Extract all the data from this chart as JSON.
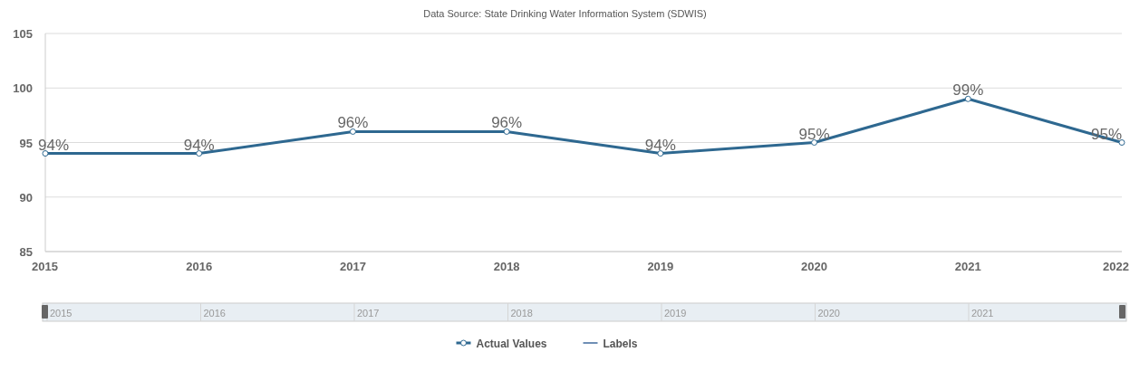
{
  "chart_data": {
    "type": "line",
    "title": "Data Source: State Drinking Water Information System (SDWIS)",
    "categories": [
      "2015",
      "2016",
      "2017",
      "2018",
      "2019",
      "2020",
      "2021",
      "2022"
    ],
    "series": [
      {
        "name": "Actual Values",
        "color": "#2e6890",
        "values": [
          94,
          94,
          96,
          96,
          94,
          95,
          99,
          95
        ],
        "value_labels": [
          "94%",
          "94%",
          "96%",
          "96%",
          "94%",
          "95%",
          "99%",
          "95%"
        ]
      },
      {
        "name": "Labels",
        "color": "#6f8fb5",
        "values": [
          null,
          null,
          null,
          null,
          null,
          null,
          null,
          null
        ]
      }
    ],
    "ylim": [
      85,
      105
    ],
    "yticks": [
      85,
      90,
      95,
      100,
      105
    ],
    "grid": "y",
    "marker": "circle",
    "line_style": "solid",
    "legend": "bottom"
  }
}
